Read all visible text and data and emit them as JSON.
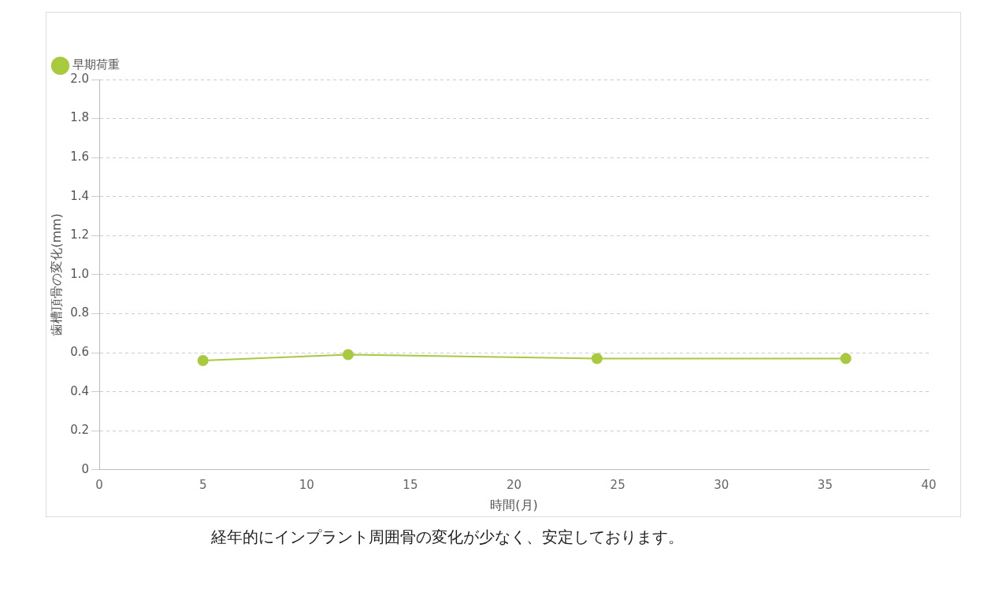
{
  "chart_data": {
    "type": "line",
    "xlabel": "時間(月)",
    "ylabel": "歯槽頂骨の変化(mm)",
    "annotations": [
      "経年的にインプラント周囲骨の変化が少なく、安定しております。"
    ],
    "x": [
      5,
      12,
      24,
      36
    ],
    "series": [
      {
        "name": "早期荷重",
        "color": "#a9c93e",
        "values": [
          0.56,
          0.59,
          0.57,
          0.57
        ]
      }
    ],
    "xlim": [
      0,
      40
    ],
    "xticks": [
      0,
      5,
      10,
      15,
      20,
      25,
      30,
      35,
      40
    ],
    "ylim": [
      0,
      2
    ],
    "yticks": [
      0,
      {
        "value": 0.2,
        "label": "0.2"
      },
      {
        "value": 0.4,
        "label": "0.4"
      },
      {
        "value": 0.6,
        "label": "0.6"
      },
      {
        "value": 0.8,
        "label": "0.8"
      },
      {
        "value": 1,
        "label": "1.0"
      },
      {
        "value": 1.2,
        "label": "1.2"
      },
      {
        "value": 1.4,
        "label": "1.4"
      },
      {
        "value": 1.6,
        "label": "1.6"
      },
      {
        "value": 1.8,
        "label": "1.8"
      },
      {
        "value": 2,
        "label": "2.0"
      }
    ],
    "grid": "y",
    "legend": "top left",
    "marker": "circle",
    "line_style": "solid"
  }
}
